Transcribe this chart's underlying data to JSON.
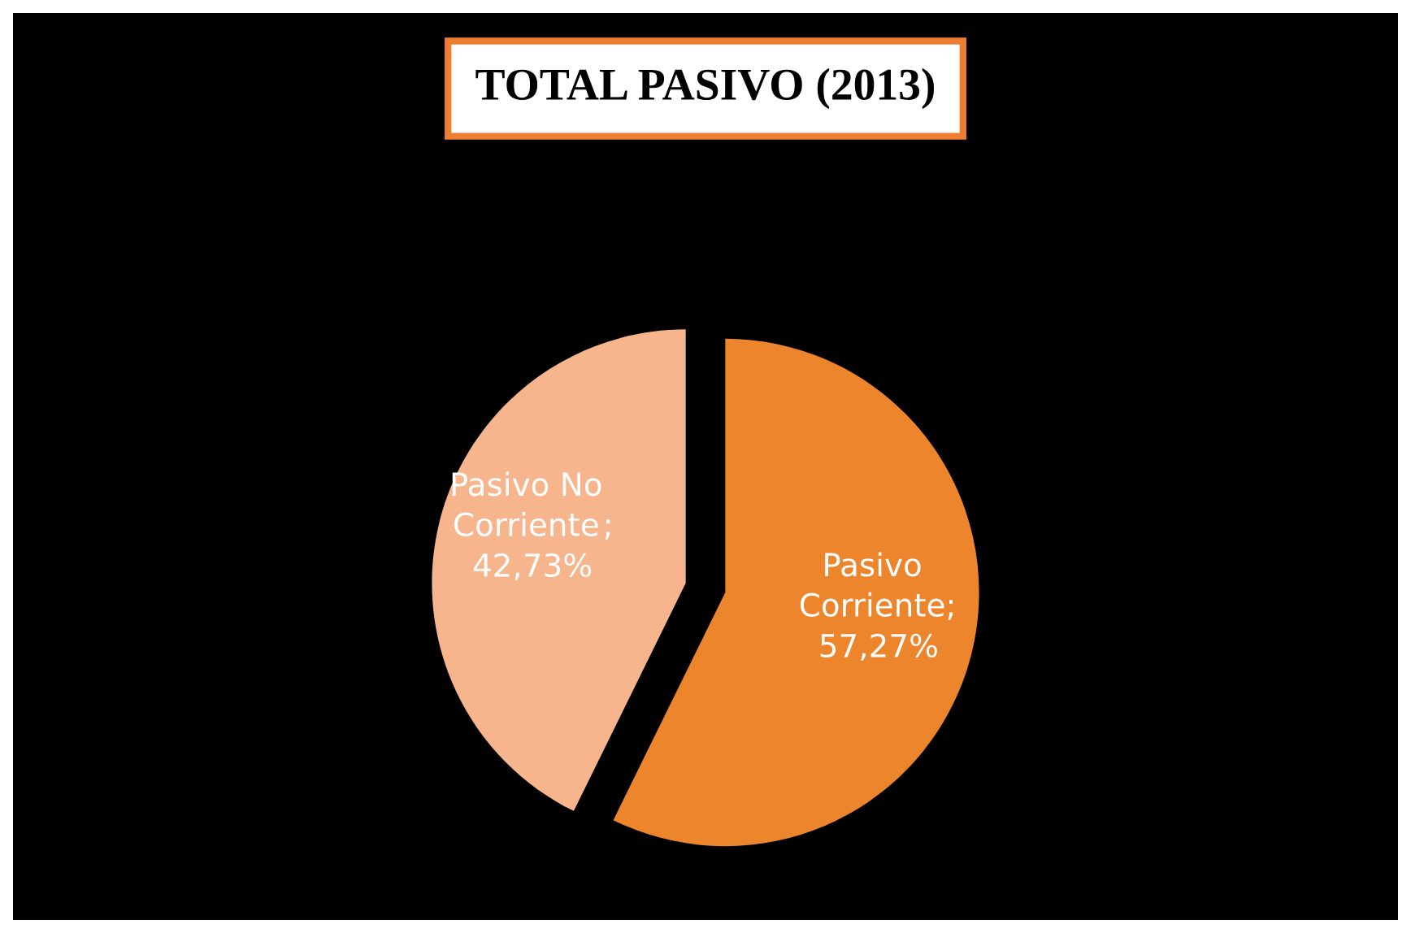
{
  "chart_data": {
    "type": "pie",
    "title": "TOTAL PASIVO (2013)",
    "categories": [
      "Pasivo Corriente",
      "Pasivo No Corriente"
    ],
    "values": [
      57.27,
      42.73
    ],
    "value_labels": [
      "; 57,27%",
      "; 42,73%"
    ],
    "colors": [
      "#ec852c",
      "#f6b58c"
    ],
    "legend": false
  }
}
